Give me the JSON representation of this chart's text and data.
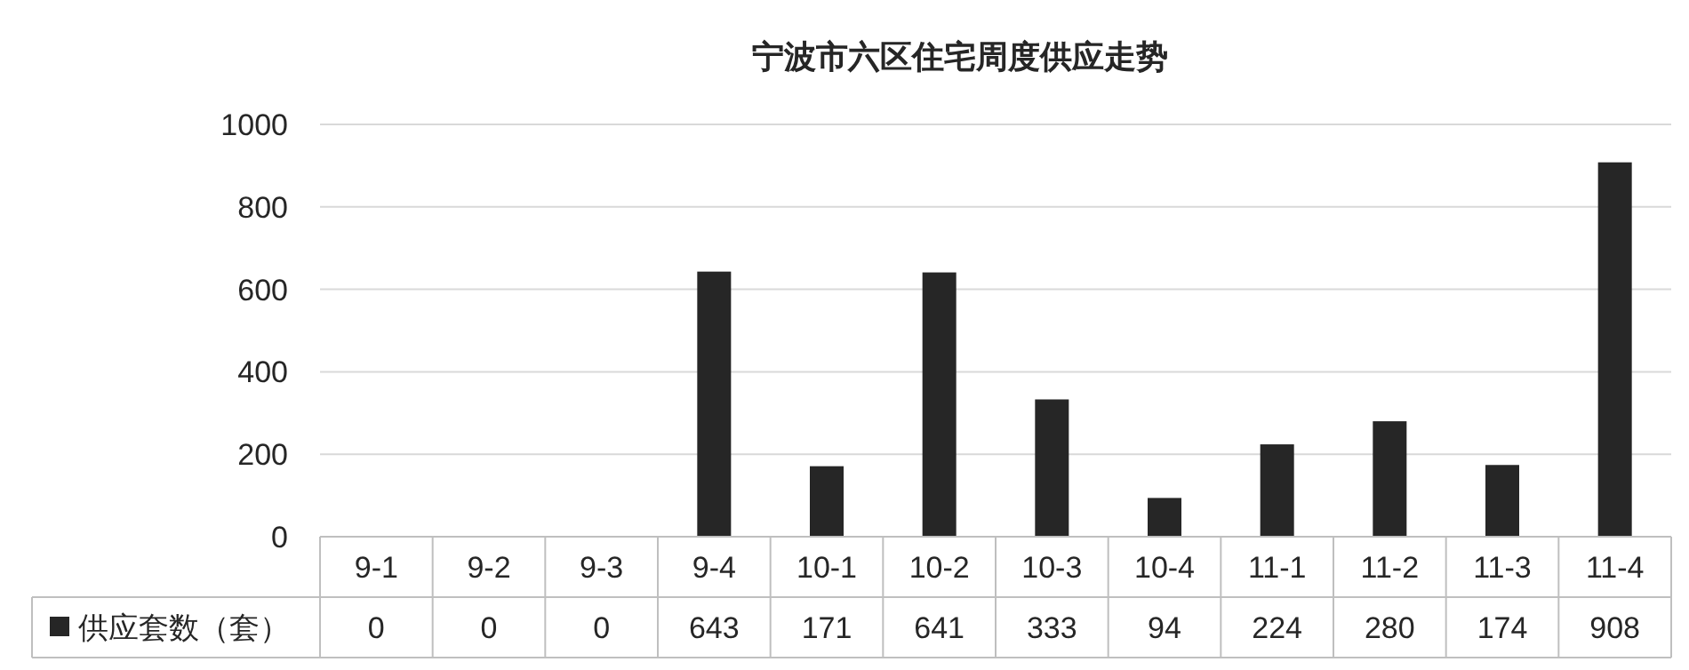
{
  "chart_data": {
    "type": "bar",
    "title": "宁波市六区住宅周度供应走势",
    "categories": [
      "9-1",
      "9-2",
      "9-3",
      "9-4",
      "10-1",
      "10-2",
      "10-3",
      "10-4",
      "11-1",
      "11-2",
      "11-3",
      "11-4"
    ],
    "series": [
      {
        "name": "供应套数（套）",
        "color": "#262626",
        "values": [
          0,
          0,
          0,
          643,
          171,
          641,
          333,
          94,
          224,
          280,
          174,
          908
        ]
      }
    ],
    "ylim": [
      0,
      1000
    ],
    "yticks": [
      0,
      200,
      400,
      600,
      800,
      1000
    ],
    "grid": "y",
    "data_labels": true,
    "legend": "bottom"
  }
}
